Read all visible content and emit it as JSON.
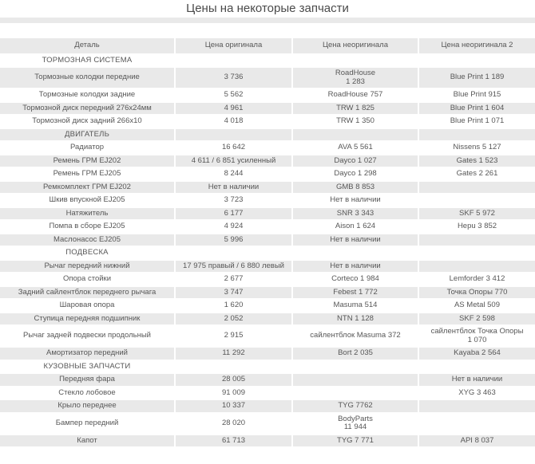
{
  "page": {
    "title": "Цены на некоторые запчасти"
  },
  "colors": {
    "stripe": "#e9e9e9",
    "text": "#575757",
    "title_text": "#4a4a4a",
    "background": "#ffffff"
  },
  "table": {
    "columns": [
      "Деталь",
      "Цена оригинала",
      "Цена неоригинала",
      "Цена неоригинала 2"
    ],
    "rows": [
      {
        "type": "section",
        "label": "ТОРМОЗНАЯ СИСТЕМА"
      },
      {
        "type": "item",
        "cells": [
          "Тормозные колодки передние",
          "3 736",
          "RoadHouse\n1 283",
          "Blue Print 1 189"
        ]
      },
      {
        "type": "item",
        "cells": [
          "Тормозные колодки задние",
          "5 562",
          "RoadHouse 757",
          "Blue Print 915"
        ]
      },
      {
        "type": "item",
        "cells": [
          "Тормозной диск передний 276х24мм",
          "4 961",
          "TRW 1 825",
          "Blue Print 1 604"
        ]
      },
      {
        "type": "item",
        "cells": [
          "Тормозной диск задний 266х10",
          "4 018",
          "TRW 1 350",
          "Blue Print 1 071"
        ]
      },
      {
        "type": "section",
        "label": "ДВИГАТЕЛЬ"
      },
      {
        "type": "item",
        "cells": [
          "Радиатор",
          "16 642",
          "AVA 5 561",
          "Nissens 5 127"
        ]
      },
      {
        "type": "item",
        "cells": [
          "Ремень ГРМ EJ202",
          "4 611 / 6 851 усиленный",
          "Dayco 1 027",
          "Gates 1 523"
        ]
      },
      {
        "type": "item",
        "cells": [
          "Ремень ГРМ EJ205",
          "8 244",
          "Dayco 1 298",
          "Gates 2 261"
        ]
      },
      {
        "type": "item",
        "cells": [
          "Ремкомплект ГРМ EJ202",
          "Нет в наличии",
          "GMB 8 853",
          ""
        ]
      },
      {
        "type": "item",
        "cells": [
          "Шкив впускной EJ205",
          "3 723",
          "Нет в наличии",
          ""
        ]
      },
      {
        "type": "item",
        "cells": [
          "Натяжитель",
          "6 177",
          "SNR 3 343",
          "SKF 5 972"
        ]
      },
      {
        "type": "item",
        "cells": [
          "Помпа в сборе EJ205",
          "4 924",
          "Aison 1 624",
          "Hepu 3 852"
        ]
      },
      {
        "type": "item",
        "cells": [
          "Маслонасос EJ205",
          "5 996",
          "Нет в наличии",
          ""
        ]
      },
      {
        "type": "section",
        "label": "ПОДВЕСКА"
      },
      {
        "type": "item",
        "cells": [
          "Рычаг передний нижний",
          "17 975 правый / 6 880 левый",
          "Нет в наличии",
          ""
        ]
      },
      {
        "type": "item",
        "cells": [
          "Опора стойки",
          "2 677",
          "Corteco 1 984",
          "Lemforder 3 412"
        ]
      },
      {
        "type": "item",
        "cells": [
          "Задний сайлентблок переднего рычага",
          "3 747",
          "Febest 1 772",
          "Точка Опоры 770"
        ]
      },
      {
        "type": "item",
        "cells": [
          "Шаровая опора",
          "1 620",
          "Masuma 514",
          "AS Metal 509"
        ]
      },
      {
        "type": "item",
        "cells": [
          "Ступица передняя подшипник",
          "2 052",
          "NTN 1 128",
          "SKF 2 598"
        ]
      },
      {
        "type": "item",
        "cells": [
          "Рычаг задней подвески продольный",
          "2 915",
          "сайлентблок Masuma 372",
          "сайлентблок Точка Опоры\n1 070"
        ]
      },
      {
        "type": "item",
        "cells": [
          "Амортизатор передний",
          "11 292",
          "Bort 2 035",
          "Kayaba 2 564"
        ]
      },
      {
        "type": "section",
        "label": "КУЗОВНЫЕ ЗАПЧАСТИ"
      },
      {
        "type": "item",
        "cells": [
          "Передняя фара",
          "28 005",
          "",
          "Нет в наличии"
        ]
      },
      {
        "type": "item",
        "cells": [
          "Стекло лобовое",
          "91 009",
          "",
          "XYG 3 463"
        ]
      },
      {
        "type": "item",
        "cells": [
          "Крыло переднее",
          "10 337",
          "TYG 7762",
          ""
        ]
      },
      {
        "type": "item",
        "cells": [
          "Бампер передний",
          "28 020",
          "BodyParts\n11 944",
          ""
        ]
      },
      {
        "type": "item",
        "cells": [
          "Капот",
          "61 713",
          "TYG 7 771",
          "API 8 037"
        ]
      }
    ]
  }
}
